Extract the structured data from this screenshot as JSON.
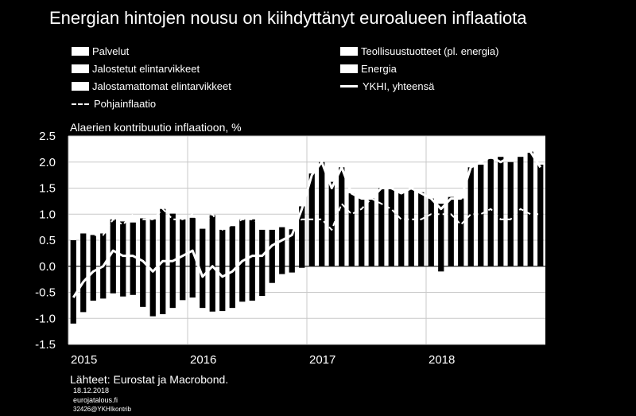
{
  "title": "Energian hintojen nousu on kiihdyttänyt euroalueen inflaatiota",
  "legend": [
    {
      "label": "Palvelut",
      "kind": "bar"
    },
    {
      "label": "Teollisuustuotteet (pl. energia)",
      "kind": "bar"
    },
    {
      "label": "Jalostetut elintarvikkeet",
      "kind": "bar"
    },
    {
      "label": "Energia",
      "kind": "bar"
    },
    {
      "label": "Jalostamattomat elintarvikkeet",
      "kind": "bar"
    },
    {
      "label": "YKHI, yhteensä",
      "kind": "line"
    },
    {
      "label": "Pohjainflaatio",
      "kind": "dash"
    }
  ],
  "footer": {
    "source": "Lähteet: Eurostat ja Macrobond.",
    "date": "18.12.2018",
    "site": "eurojatalous.fi",
    "code": "32426@YKHIkontrib"
  },
  "chart_data": {
    "type": "bar",
    "title": "Alaerien kontribuutio inflaatioon, %",
    "ylim": [
      -1.5,
      2.5
    ],
    "yticks": [
      "2.5",
      "2.0",
      "1.5",
      "1.0",
      "0.5",
      "0.0",
      "-0.5",
      "-1.0",
      "-1.5"
    ],
    "ytick_values": [
      2.5,
      2.0,
      1.5,
      1.0,
      0.5,
      0.0,
      -0.5,
      -1.0,
      -1.5
    ],
    "x_year_labels": [
      "2015",
      "2016",
      "2017",
      "2018"
    ],
    "x_year_start_index": [
      0,
      12,
      24,
      36
    ],
    "grid": true,
    "background": "#ffffff",
    "bar_color": "#000000",
    "line_color": "#ffffff",
    "bars": {
      "top": [
        0.5,
        0.63,
        0.6,
        0.63,
        0.9,
        0.86,
        0.84,
        0.92,
        0.9,
        1.1,
        1.01,
        0.9,
        0.93,
        0.72,
        0.98,
        0.7,
        0.77,
        0.9,
        0.9,
        0.7,
        0.7,
        0.75,
        0.71,
        1.15,
        1.78,
        2.0,
        1.62,
        1.9,
        1.4,
        1.3,
        1.3,
        1.5,
        1.5,
        1.4,
        1.5,
        1.42,
        1.3,
        1.2,
        1.33,
        1.3,
        1.9,
        1.95,
        2.06,
        2.1,
        2.0,
        2.1,
        2.2,
        1.95
      ],
      "bottom": [
        -1.1,
        -0.88,
        -0.66,
        -0.62,
        -0.52,
        -0.58,
        -0.55,
        -0.78,
        -0.96,
        -0.92,
        -0.8,
        -0.65,
        -0.6,
        -0.8,
        -0.87,
        -0.86,
        -0.8,
        -0.68,
        -0.66,
        -0.57,
        -0.32,
        -0.15,
        -0.12,
        -0.03,
        0.0,
        0.0,
        0.0,
        0.0,
        0.0,
        0.0,
        0.0,
        0.0,
        0.0,
        0.0,
        0.0,
        0.0,
        0.0,
        -0.1,
        0.0,
        0.0,
        0.0,
        0.0,
        0.0,
        0.0,
        0.0,
        0.0,
        0.0,
        0.0
      ]
    },
    "series": [
      {
        "name": "YKHI, yhteensä",
        "style": "line",
        "values": [
          -0.6,
          -0.3,
          -0.1,
          0.0,
          0.3,
          0.2,
          0.2,
          0.1,
          -0.1,
          0.1,
          0.1,
          0.2,
          0.3,
          -0.2,
          0.0,
          -0.2,
          -0.1,
          0.1,
          0.2,
          0.2,
          0.4,
          0.5,
          0.6,
          1.1,
          1.75,
          2.0,
          1.5,
          1.9,
          1.4,
          1.3,
          1.3,
          1.5,
          1.5,
          1.4,
          1.5,
          1.4,
          1.3,
          1.1,
          1.3,
          1.3,
          1.9,
          2.0,
          2.1,
          2.0,
          2.1,
          2.2,
          2.2,
          1.9
        ]
      },
      {
        "name": "Pohjainflaatio",
        "style": "dash",
        "values": [
          0.6,
          0.7,
          0.6,
          0.6,
          0.9,
          0.8,
          1.0,
          0.9,
          0.9,
          1.1,
          0.9,
          0.9,
          1.0,
          0.8,
          1.0,
          0.7,
          0.8,
          0.9,
          0.9,
          0.8,
          0.8,
          0.8,
          0.8,
          0.9,
          0.9,
          0.9,
          0.7,
          1.2,
          1.0,
          1.1,
          1.3,
          1.2,
          1.1,
          0.9,
          0.9,
          0.9,
          1.0,
          1.0,
          1.0,
          0.8,
          1.0,
          1.0,
          1.1,
          0.9,
          0.9,
          1.1,
          1.0,
          1.0
        ]
      }
    ]
  }
}
